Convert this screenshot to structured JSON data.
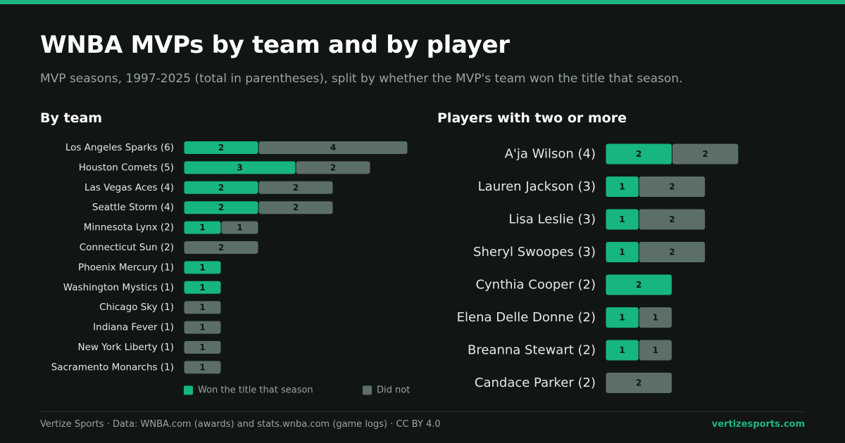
{
  "title": "WNBA MVPs by team and by player",
  "subtitle": "MVP seasons, 1997-2025 (total in parentheses), split by whether the MVP's team won the title that season.",
  "colors": {
    "accent": "#1db584",
    "won": "#16b582",
    "did_not": "#5c6e68",
    "background": "#111614"
  },
  "footer": {
    "credit": "Vertize Sports · Data: WNBA.com (awards) and stats.wnba.com (game logs) · CC BY 4.0",
    "site": "vertizesports.com"
  },
  "chart_data": [
    {
      "type": "bar",
      "orientation": "horizontal",
      "stacked": true,
      "title": "By team",
      "categories": [
        "Los Angeles Sparks (6)",
        "Houston Comets (5)",
        "Las Vegas Aces (4)",
        "Seattle Storm (4)",
        "Minnesota Lynx (2)",
        "Connecticut Sun (2)",
        "Phoenix Mercury (1)",
        "Washington Mystics (1)",
        "Chicago Sky (1)",
        "Indiana Fever (1)",
        "New York Liberty (1)",
        "Sacramento Monarchs (1)"
      ],
      "series": [
        {
          "name": "Won the title that season",
          "values": [
            2,
            3,
            2,
            2,
            1,
            0,
            1,
            1,
            0,
            0,
            0,
            0
          ]
        },
        {
          "name": "Did not",
          "values": [
            4,
            2,
            2,
            2,
            1,
            2,
            0,
            0,
            1,
            1,
            1,
            1
          ]
        }
      ],
      "legend": "bottom"
    },
    {
      "type": "bar",
      "orientation": "horizontal",
      "stacked": true,
      "title": "Players with two or more",
      "categories": [
        "A'ja Wilson (4)",
        "Lauren Jackson (3)",
        "Lisa Leslie (3)",
        "Sheryl Swoopes (3)",
        "Cynthia Cooper (2)",
        "Elena Delle Donne (2)",
        "Breanna Stewart (2)",
        "Candace Parker (2)"
      ],
      "series": [
        {
          "name": "Won the title that season",
          "values": [
            2,
            1,
            1,
            1,
            2,
            1,
            1,
            0
          ]
        },
        {
          "name": "Did not",
          "values": [
            2,
            2,
            2,
            2,
            0,
            1,
            1,
            2
          ]
        }
      ]
    }
  ]
}
